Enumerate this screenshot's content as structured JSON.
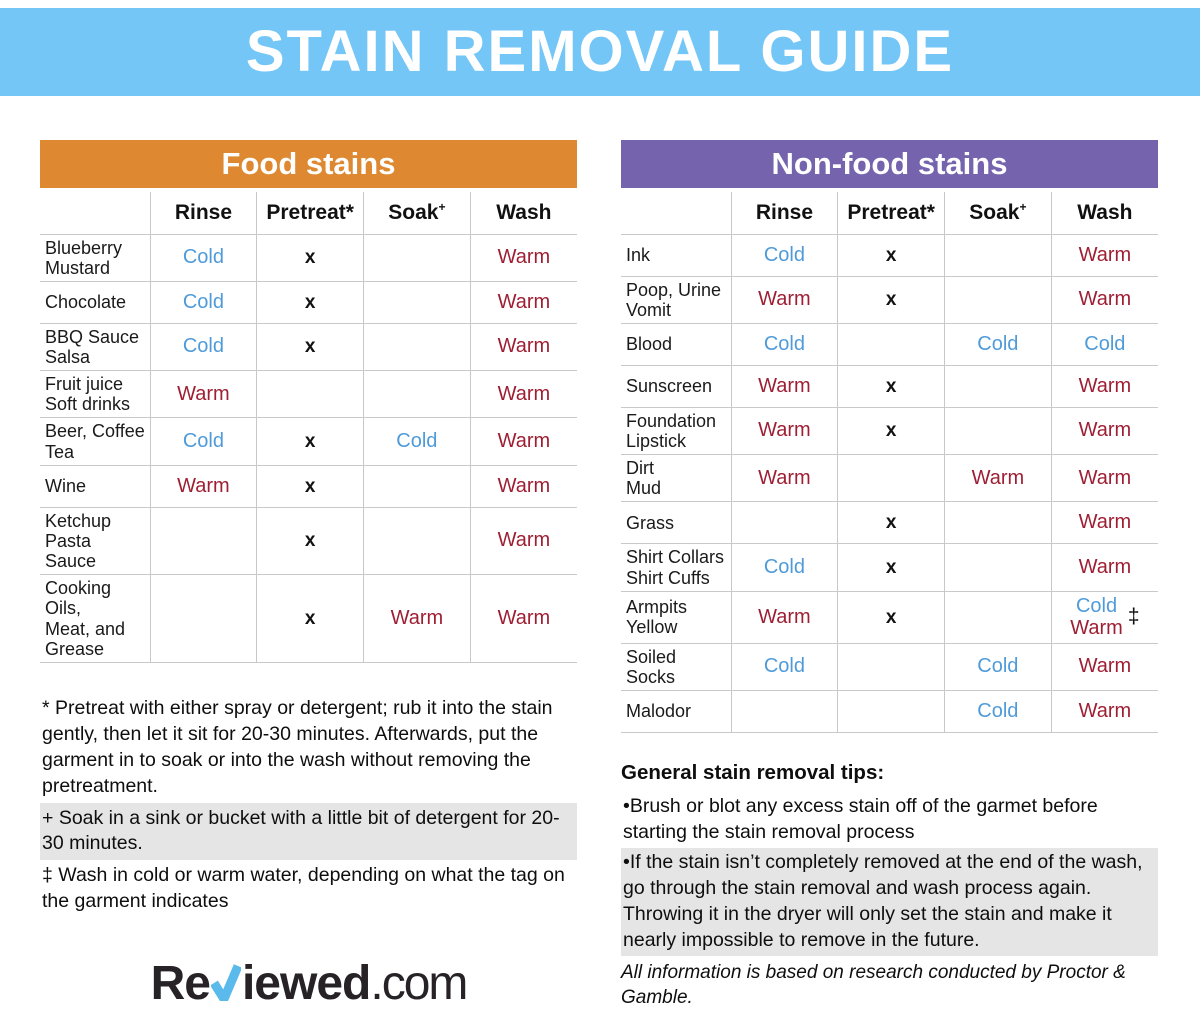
{
  "page": {
    "title": "STAIN REMOVAL GUIDE"
  },
  "colors": {
    "banner": "#74C6F7",
    "food_header": "#DE8931",
    "nonfood_header": "#7564AD",
    "cold_text": "#4F9BD9",
    "warm_text": "#9E1F33",
    "highlight": "#E5E5E5",
    "logo_check": "#5ABAEC"
  },
  "columns": [
    {
      "text": "Rinse",
      "sup": ""
    },
    {
      "text": "Pretreat*",
      "sup": ""
    },
    {
      "text": "Soak",
      "sup": "+"
    },
    {
      "text": "Wash",
      "sup": ""
    }
  ],
  "food_table": {
    "title": "Food stains",
    "rows": [
      {
        "name": [
          "Blueberry",
          "Mustard"
        ],
        "cells": [
          {
            "text": "Cold",
            "style": "cold"
          },
          {
            "text": "x",
            "style": "mark"
          },
          null,
          {
            "text": "Warm",
            "style": "warm"
          }
        ]
      },
      {
        "name": [
          "Chocolate"
        ],
        "cells": [
          {
            "text": "Cold",
            "style": "cold"
          },
          {
            "text": "x",
            "style": "mark"
          },
          null,
          {
            "text": "Warm",
            "style": "warm"
          }
        ]
      },
      {
        "name": [
          "BBQ Sauce",
          "Salsa"
        ],
        "cells": [
          {
            "text": "Cold",
            "style": "cold"
          },
          {
            "text": "x",
            "style": "mark"
          },
          null,
          {
            "text": "Warm",
            "style": "warm"
          }
        ]
      },
      {
        "name": [
          "Fruit juice",
          "Soft drinks"
        ],
        "cells": [
          {
            "text": "Warm",
            "style": "warm"
          },
          null,
          null,
          {
            "text": "Warm",
            "style": "warm"
          }
        ]
      },
      {
        "name": [
          "Beer, Coffee",
          "Tea"
        ],
        "cells": [
          {
            "text": "Cold",
            "style": "cold"
          },
          {
            "text": "x",
            "style": "mark"
          },
          {
            "text": "Cold",
            "style": "cold"
          },
          {
            "text": "Warm",
            "style": "warm"
          }
        ]
      },
      {
        "name": [
          "Wine"
        ],
        "cells": [
          {
            "text": "Warm",
            "style": "warm"
          },
          {
            "text": "x",
            "style": "mark"
          },
          null,
          {
            "text": "Warm",
            "style": "warm"
          }
        ]
      },
      {
        "name": [
          "Ketchup",
          "Pasta Sauce"
        ],
        "cells": [
          null,
          {
            "text": "x",
            "style": "mark"
          },
          null,
          {
            "text": "Warm",
            "style": "warm"
          }
        ]
      },
      {
        "name": [
          "Cooking Oils,",
          "Meat, and",
          "Grease"
        ],
        "cells": [
          null,
          {
            "text": "x",
            "style": "mark"
          },
          {
            "text": "Warm",
            "style": "warm"
          },
          {
            "text": "Warm",
            "style": "warm"
          }
        ]
      }
    ]
  },
  "nonfood_table": {
    "title": "Non-food stains",
    "rows": [
      {
        "name": [
          "Ink"
        ],
        "cells": [
          {
            "text": "Cold",
            "style": "cold"
          },
          {
            "text": "x",
            "style": "mark"
          },
          null,
          {
            "text": "Warm",
            "style": "warm"
          }
        ]
      },
      {
        "name": [
          "Poop, Urine",
          "Vomit"
        ],
        "cells": [
          {
            "text": "Warm",
            "style": "warm"
          },
          {
            "text": "x",
            "style": "mark"
          },
          null,
          {
            "text": "Warm",
            "style": "warm"
          }
        ]
      },
      {
        "name": [
          "Blood"
        ],
        "cells": [
          {
            "text": "Cold",
            "style": "cold"
          },
          null,
          {
            "text": "Cold",
            "style": "cold"
          },
          {
            "text": "Cold",
            "style": "cold"
          }
        ]
      },
      {
        "name": [
          "Sunscreen"
        ],
        "cells": [
          {
            "text": "Warm",
            "style": "warm"
          },
          {
            "text": "x",
            "style": "mark"
          },
          null,
          {
            "text": "Warm",
            "style": "warm"
          }
        ]
      },
      {
        "name": [
          "Foundation",
          "Lipstick"
        ],
        "cells": [
          {
            "text": "Warm",
            "style": "warm"
          },
          {
            "text": "x",
            "style": "mark"
          },
          null,
          {
            "text": "Warm",
            "style": "warm"
          }
        ]
      },
      {
        "name": [
          "Dirt",
          "Mud"
        ],
        "cells": [
          {
            "text": "Warm",
            "style": "warm"
          },
          null,
          {
            "text": "Warm",
            "style": "warm"
          },
          {
            "text": "Warm",
            "style": "warm"
          }
        ]
      },
      {
        "name": [
          "Grass"
        ],
        "cells": [
          null,
          {
            "text": "x",
            "style": "mark"
          },
          null,
          {
            "text": "Warm",
            "style": "warm"
          }
        ]
      },
      {
        "name": [
          "Shirt Collars",
          "Shirt Cuffs"
        ],
        "cells": [
          {
            "text": "Cold",
            "style": "cold"
          },
          {
            "text": "x",
            "style": "mark"
          },
          null,
          {
            "text": "Warm",
            "style": "warm"
          }
        ]
      },
      {
        "name": [
          "Armpits",
          "Yellow"
        ],
        "cells": [
          {
            "text": "Warm",
            "style": "warm"
          },
          {
            "text": "x",
            "style": "mark"
          },
          null,
          {
            "multi": [
              {
                "text": "Cold",
                "style": "cold"
              },
              {
                "text": "Warm",
                "style": "warm"
              }
            ],
            "marker": "‡"
          }
        ]
      },
      {
        "name": [
          "Soiled",
          "Socks"
        ],
        "cells": [
          {
            "text": "Cold",
            "style": "cold"
          },
          null,
          {
            "text": "Cold",
            "style": "cold"
          },
          {
            "text": "Warm",
            "style": "warm"
          }
        ]
      },
      {
        "name": [
          "Malodor"
        ],
        "cells": [
          null,
          null,
          {
            "text": "Cold",
            "style": "cold"
          },
          {
            "text": "Warm",
            "style": "warm"
          }
        ]
      }
    ]
  },
  "footnotes": [
    {
      "marker": "*",
      "text": "Pretreat with either spray or detergent; rub it into the stain gently, then let it sit for 20-30 minutes. Afterwards, put the garment in to soak or into the wash without removing the pretreatment.",
      "highlight": false
    },
    {
      "marker": "+",
      "text": "Soak in a sink or bucket with a little bit of detergent for 20-30 minutes.",
      "highlight": true
    },
    {
      "marker": "‡",
      "text": "Wash in cold or warm water, depending on what the tag on the garment indicates",
      "highlight": false
    }
  ],
  "tips": {
    "title": "General stain removal tips:",
    "items": [
      {
        "text": "•Brush or blot any excess stain off of the garmet before starting the stain removal process",
        "highlight": false
      },
      {
        "text": "•If the stain isn’t completely removed at the end of the wash, go through the stain removal and wash process again. Throwing it in the dryer will only set the stain and make it nearly impossible to remove in the future.",
        "highlight": true
      }
    ],
    "attribution": "All information is based on research conducted by Proctor & Gamble."
  },
  "logo": {
    "prefix": "Re",
    "check": "✓",
    "middle": "iewed",
    "suffix": ".com"
  }
}
